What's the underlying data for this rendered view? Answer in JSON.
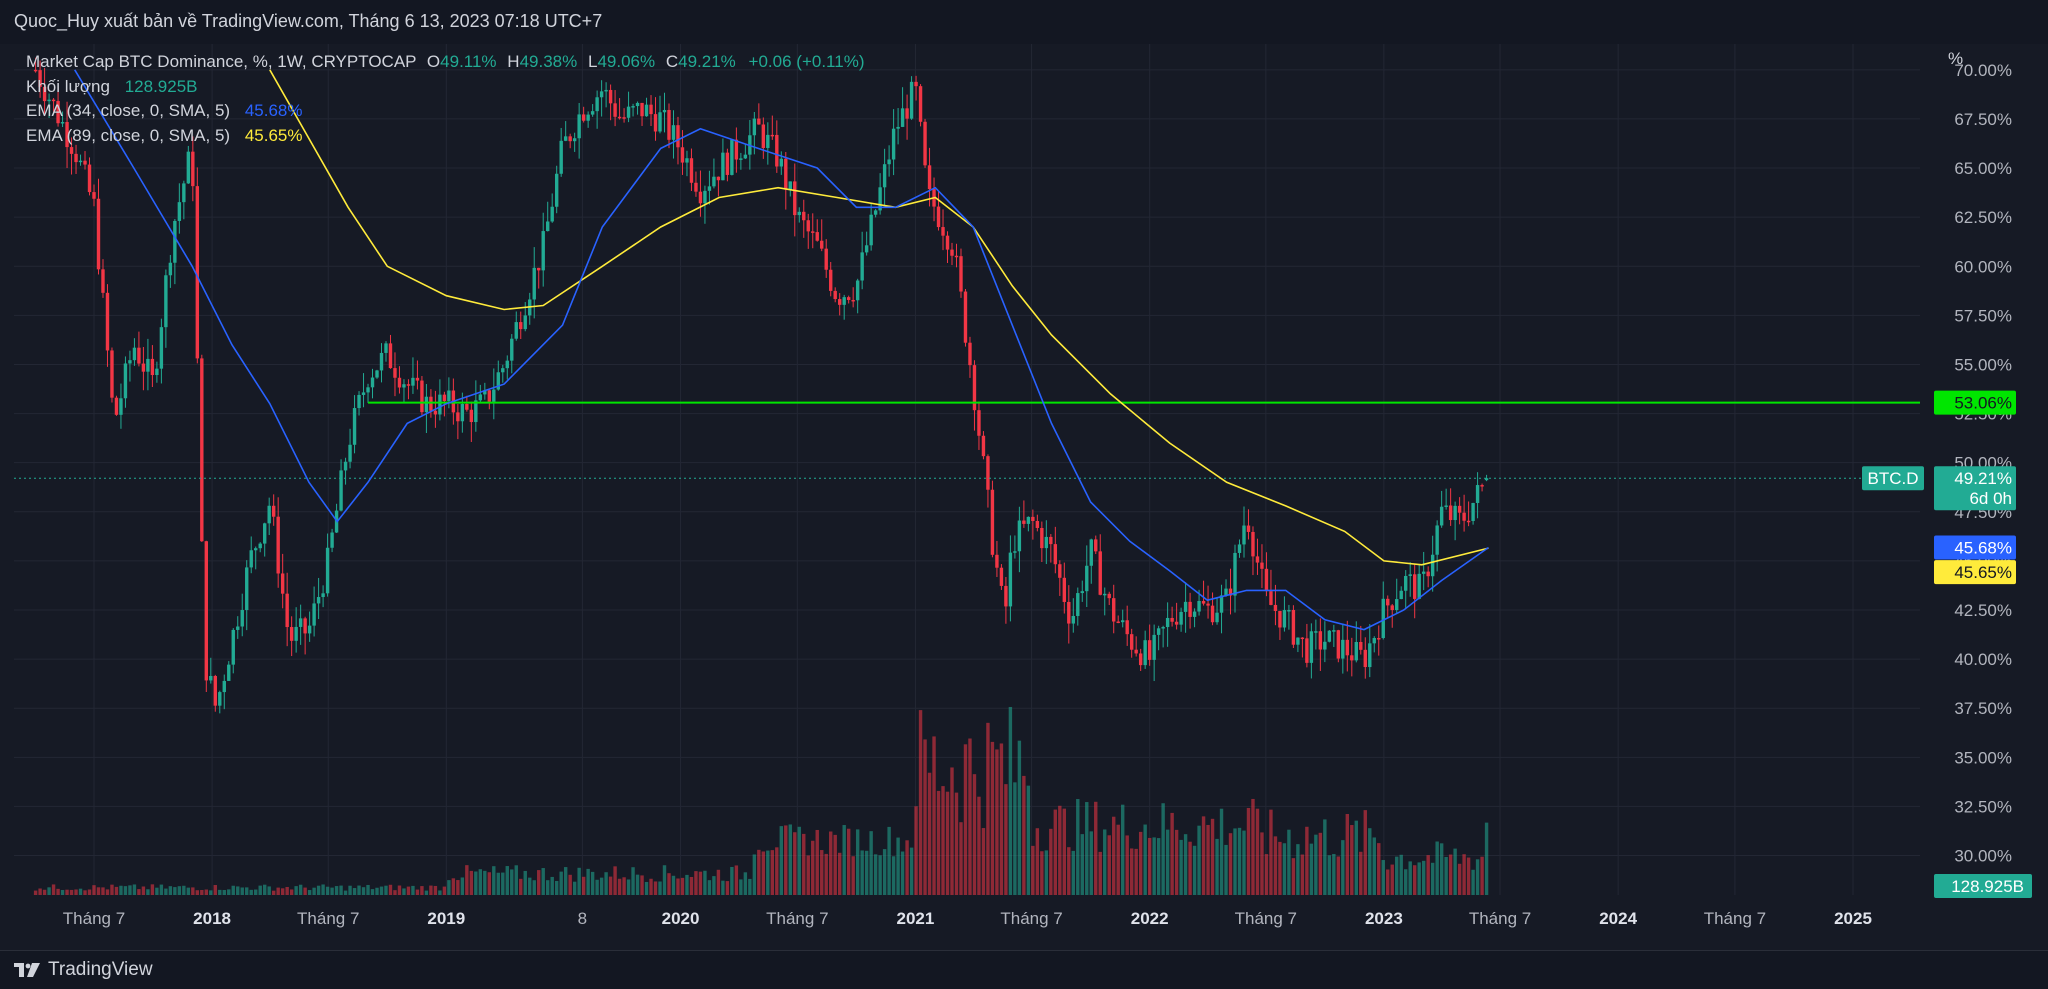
{
  "header": {
    "publisher_line": "Quoc_Huy xuất bản về TradingView.com, Tháng 6 13, 2023 07:18 UTC+7"
  },
  "legend": {
    "series_label": "Market Cap BTC Dominance, %, 1W, CRYPTOCAP",
    "open_key": "O",
    "open_value": "49.11%",
    "high_key": "H",
    "high_value": "49.38%",
    "low_key": "L",
    "low_value": "49.06%",
    "close_key": "C",
    "close_value": "49.21%",
    "change": "+0.06 (+0.11%)",
    "volume_label": "Khối lượng",
    "volume_value": "128.925B",
    "ema_fast_label": "EMA (34, close, 0, SMA, 5)",
    "ema_fast_value": "45.68%",
    "ema_slow_label": "EMA (89, close, 0, SMA, 5)",
    "ema_slow_value": "45.65%"
  },
  "footer": {
    "brand": "TradingView"
  },
  "colors": {
    "background": "#161a25",
    "grid": "#232734",
    "up": "#22ab94",
    "down": "#f23645",
    "ema_fast": "#2962ff",
    "ema_slow": "#ffeb3b",
    "level_line": "#00e600",
    "text": "#d1d4dc"
  },
  "chart_data": {
    "type": "candlestick",
    "interval": "1W",
    "y_unit": "%",
    "ylim": [
      28.5,
      70.5
    ],
    "grid": true,
    "y_ticks": [
      30,
      32.5,
      35,
      37.5,
      40,
      42.5,
      45,
      47.5,
      50,
      52.5,
      55,
      57.5,
      60,
      62.5,
      65,
      67.5,
      70
    ],
    "y_tick_labels": [
      "30.00%",
      "32.50%",
      "35.00%",
      "37.50%",
      "40.00%",
      "42.50%",
      "45.00%",
      "47.50%",
      "50.00%",
      "52.50%",
      "55.00%",
      "57.50%",
      "60.00%",
      "62.50%",
      "65.00%",
      "67.50%",
      "70.00%"
    ],
    "x_ticks": [
      {
        "date": "2017-07",
        "label": "Tháng 7",
        "bold": false
      },
      {
        "date": "2018-01",
        "label": "2018",
        "bold": true
      },
      {
        "date": "2018-07",
        "label": "Tháng 7",
        "bold": false
      },
      {
        "date": "2019-01",
        "label": "2019",
        "bold": true
      },
      {
        "date": "2019-08",
        "label": "8",
        "bold": false
      },
      {
        "date": "2020-01",
        "label": "2020",
        "bold": true
      },
      {
        "date": "2020-07",
        "label": "Tháng 7",
        "bold": false
      },
      {
        "date": "2021-01",
        "label": "2021",
        "bold": true
      },
      {
        "date": "2021-07",
        "label": "Tháng 7",
        "bold": false
      },
      {
        "date": "2022-01",
        "label": "2022",
        "bold": true
      },
      {
        "date": "2022-07",
        "label": "Tháng 7",
        "bold": false
      },
      {
        "date": "2023-01",
        "label": "2023",
        "bold": true
      },
      {
        "date": "2023-07",
        "label": "Tháng 7",
        "bold": false
      },
      {
        "date": "2024-01",
        "label": "2024",
        "bold": true
      },
      {
        "date": "2024-07",
        "label": "Tháng 7",
        "bold": false
      },
      {
        "date": "2025-01",
        "label": "2025",
        "bold": true
      }
    ],
    "price_path": [
      [
        "2017-04-01",
        70
      ],
      [
        "2017-06-01",
        66
      ],
      [
        "2017-07-01",
        63
      ],
      [
        "2017-08-01",
        52
      ],
      [
        "2017-09-01",
        56
      ],
      [
        "2017-10-01",
        54
      ],
      [
        "2017-11-01",
        62
      ],
      [
        "2017-12-01",
        66
      ],
      [
        "2017-12-20",
        40
      ],
      [
        "2018-01-07",
        37.5
      ],
      [
        "2018-02-01",
        41
      ],
      [
        "2018-03-01",
        45
      ],
      [
        "2018-04-01",
        48
      ],
      [
        "2018-05-01",
        41
      ],
      [
        "2018-06-01",
        41.5
      ],
      [
        "2018-07-01",
        45
      ],
      [
        "2018-08-01",
        51
      ],
      [
        "2018-09-01",
        54.5
      ],
      [
        "2018-10-01",
        55.5
      ],
      [
        "2018-11-01",
        54
      ],
      [
        "2018-12-01",
        53
      ],
      [
        "2019-01-01",
        53
      ],
      [
        "2019-02-01",
        52.5
      ],
      [
        "2019-03-01",
        53
      ],
      [
        "2019-04-01",
        55
      ],
      [
        "2019-05-01",
        58
      ],
      [
        "2019-06-01",
        61
      ],
      [
        "2019-07-01",
        66
      ],
      [
        "2019-08-01",
        68
      ],
      [
        "2019-09-01",
        69
      ],
      [
        "2019-10-01",
        67.5
      ],
      [
        "2019-11-01",
        68
      ],
      [
        "2019-12-01",
        67.5
      ],
      [
        "2020-01-01",
        66
      ],
      [
        "2020-02-01",
        64
      ],
      [
        "2020-03-01",
        65
      ],
      [
        "2020-04-01",
        66
      ],
      [
        "2020-05-01",
        67
      ],
      [
        "2020-06-01",
        65.5
      ],
      [
        "2020-07-01",
        62.5
      ],
      [
        "2020-08-01",
        61
      ],
      [
        "2020-09-01",
        58.5
      ],
      [
        "2020-10-01",
        59
      ],
      [
        "2020-11-01",
        63
      ],
      [
        "2020-12-01",
        67
      ],
      [
        "2021-01-01",
        69
      ],
      [
        "2021-01-20",
        63.5
      ],
      [
        "2021-02-01",
        63
      ],
      [
        "2021-03-01",
        61
      ],
      [
        "2021-04-01",
        54
      ],
      [
        "2021-05-01",
        46
      ],
      [
        "2021-05-20",
        42
      ],
      [
        "2021-06-01",
        46
      ],
      [
        "2021-07-01",
        47
      ],
      [
        "2021-08-01",
        45.5
      ],
      [
        "2021-09-01",
        42
      ],
      [
        "2021-10-01",
        45.5
      ],
      [
        "2021-11-01",
        42.5
      ],
      [
        "2021-12-01",
        41
      ],
      [
        "2022-01-01",
        40
      ],
      [
        "2022-02-01",
        42
      ],
      [
        "2022-03-01",
        43
      ],
      [
        "2022-04-01",
        42.5
      ],
      [
        "2022-05-01",
        43
      ],
      [
        "2022-06-01",
        47.5
      ],
      [
        "2022-07-01",
        43
      ],
      [
        "2022-08-01",
        42
      ],
      [
        "2022-09-01",
        40.5
      ],
      [
        "2022-10-01",
        41
      ],
      [
        "2022-11-01",
        40.5
      ],
      [
        "2022-12-01",
        40
      ],
      [
        "2023-01-01",
        42.5
      ],
      [
        "2023-02-01",
        44
      ],
      [
        "2023-03-01",
        43.5
      ],
      [
        "2023-04-01",
        47.5
      ],
      [
        "2023-05-01",
        47
      ],
      [
        "2023-06-13",
        49.21
      ]
    ],
    "volume": {
      "peak_billion": 383,
      "last_billion": 128.925,
      "last_label": "128.925B"
    },
    "ema_fast": {
      "name": "EMA (34, close, 0, SMA, 5)",
      "points": [
        [
          "2017-06-01",
          70
        ],
        [
          "2017-09-01",
          65
        ],
        [
          "2017-12-01",
          60
        ],
        [
          "2018-02-01",
          56
        ],
        [
          "2018-04-01",
          53
        ],
        [
          "2018-06-01",
          49
        ],
        [
          "2018-07-15",
          47
        ],
        [
          "2018-09-01",
          49
        ],
        [
          "2018-11-01",
          52
        ],
        [
          "2019-01-01",
          53
        ],
        [
          "2019-04-01",
          54
        ],
        [
          "2019-07-01",
          57
        ],
        [
          "2019-09-01",
          62
        ],
        [
          "2019-12-01",
          66
        ],
        [
          "2020-02-01",
          67
        ],
        [
          "2020-05-01",
          66
        ],
        [
          "2020-08-01",
          65
        ],
        [
          "2020-10-01",
          63
        ],
        [
          "2020-12-01",
          63
        ],
        [
          "2021-02-01",
          64
        ],
        [
          "2021-04-01",
          62
        ],
        [
          "2021-06-01",
          57
        ],
        [
          "2021-08-01",
          52
        ],
        [
          "2021-10-01",
          48
        ],
        [
          "2021-12-01",
          46
        ],
        [
          "2022-02-01",
          44.5
        ],
        [
          "2022-04-01",
          43
        ],
        [
          "2022-06-01",
          43.5
        ],
        [
          "2022-08-01",
          43.5
        ],
        [
          "2022-10-01",
          42
        ],
        [
          "2022-12-01",
          41.5
        ],
        [
          "2023-02-01",
          42.5
        ],
        [
          "2023-04-01",
          44
        ],
        [
          "2023-06-13",
          45.68
        ]
      ]
    },
    "ema_slow": {
      "name": "EMA (89, close, 0, SMA, 5)",
      "points": [
        [
          "2018-04-01",
          70
        ],
        [
          "2018-08-01",
          63
        ],
        [
          "2018-10-01",
          60
        ],
        [
          "2019-01-01",
          58.5
        ],
        [
          "2019-04-01",
          57.8
        ],
        [
          "2019-06-01",
          58
        ],
        [
          "2019-09-01",
          60
        ],
        [
          "2019-12-01",
          62
        ],
        [
          "2020-03-01",
          63.5
        ],
        [
          "2020-06-01",
          64
        ],
        [
          "2020-09-01",
          63.5
        ],
        [
          "2020-12-01",
          63
        ],
        [
          "2021-02-01",
          63.5
        ],
        [
          "2021-04-01",
          62
        ],
        [
          "2021-06-01",
          59
        ],
        [
          "2021-08-01",
          56.5
        ],
        [
          "2021-11-01",
          53.5
        ],
        [
          "2022-02-01",
          51
        ],
        [
          "2022-05-01",
          49
        ],
        [
          "2022-08-01",
          47.8
        ],
        [
          "2022-11-01",
          46.5
        ],
        [
          "2023-01-01",
          45
        ],
        [
          "2023-03-01",
          44.8
        ],
        [
          "2023-06-13",
          45.65
        ]
      ]
    },
    "level_line": {
      "value": 53.06,
      "label": "53.06%",
      "from_date": "2018-09-01"
    },
    "last_price": {
      "value": 49.21,
      "symbol": "BTC.D",
      "label": "49.21%",
      "countdown": "6d 0h"
    },
    "axis_badges": [
      {
        "value": 45.68,
        "label": "45.68%",
        "series": "ema_fast"
      },
      {
        "value": 45.65,
        "label": "45.65%",
        "series": "ema_slow"
      }
    ],
    "percent_axis_label": "%"
  }
}
